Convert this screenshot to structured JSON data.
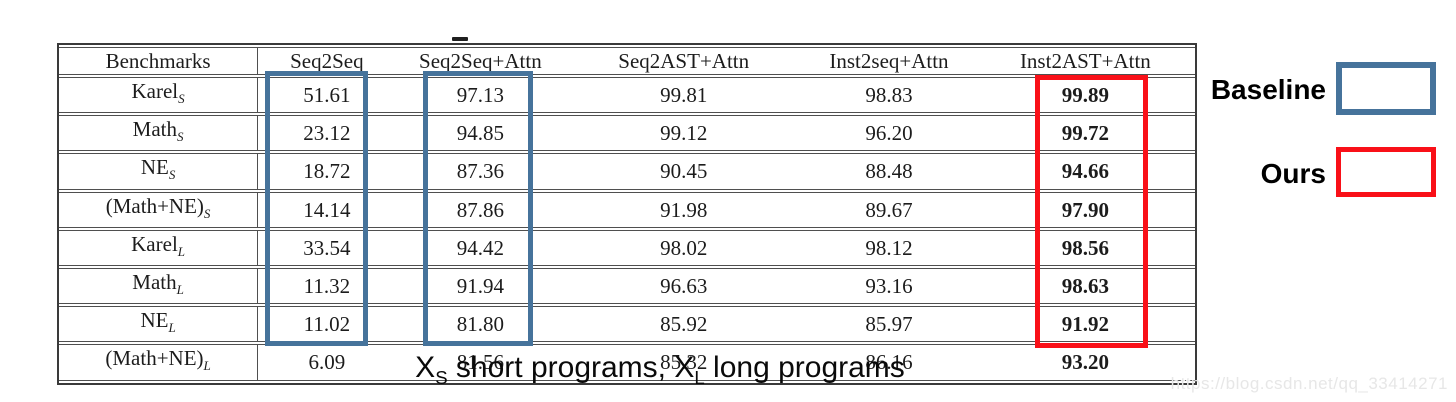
{
  "table": {
    "columns": [
      "Benchmarks",
      "Seq2Seq",
      "Seq2Seq+Attn",
      "Seq2AST+Attn",
      "Inst2seq+Attn",
      "Inst2AST+Attn"
    ],
    "rows": [
      {
        "benchmark": "Karel",
        "subscript": "S",
        "values": [
          "51.61",
          "97.13",
          "99.81",
          "98.83",
          "99.89"
        ]
      },
      {
        "benchmark": "Math",
        "subscript": "S",
        "values": [
          "23.12",
          "94.85",
          "99.12",
          "96.20",
          "99.72"
        ]
      },
      {
        "benchmark": "NE",
        "subscript": "S",
        "values": [
          "18.72",
          "87.36",
          "90.45",
          "88.48",
          "94.66"
        ]
      },
      {
        "benchmark": "(Math+NE)",
        "subscript": "S",
        "values": [
          "14.14",
          "87.86",
          "91.98",
          "89.67",
          "97.90"
        ]
      },
      {
        "benchmark": "Karel",
        "subscript": "L",
        "values": [
          "33.54",
          "94.42",
          "98.02",
          "98.12",
          "98.56"
        ]
      },
      {
        "benchmark": "Math",
        "subscript": "L",
        "values": [
          "11.32",
          "91.94",
          "96.63",
          "93.16",
          "98.63"
        ]
      },
      {
        "benchmark": "NE",
        "subscript": "L",
        "values": [
          "11.02",
          "81.80",
          "85.92",
          "85.97",
          "91.92"
        ]
      },
      {
        "benchmark": "(Math+NE)",
        "subscript": "L",
        "values": [
          "6.09",
          "81.56",
          "85.32",
          "86.16",
          "93.20"
        ]
      }
    ],
    "bold_value_column": "Inst2AST+Attn"
  },
  "highlights": {
    "baseline_columns": [
      "Seq2Seq",
      "Seq2Seq+Attn"
    ],
    "ours_column": "Inst2AST+Attn"
  },
  "legend": {
    "baseline_label": "Baseline",
    "ours_label": "Ours",
    "baseline_color": "#46739b",
    "ours_color": "#f91018"
  },
  "caption": {
    "x1": "X",
    "sub1": "S",
    "mid": " short programs, X",
    "sub2": "L",
    "end": " long programs"
  },
  "watermark": "https://blog.csdn.net/qq_33414271"
}
